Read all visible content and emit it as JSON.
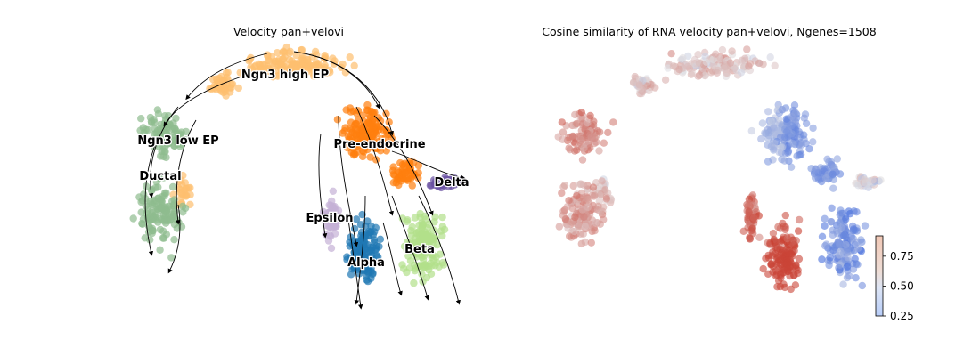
{
  "chart_data": [
    {
      "type": "scatter",
      "title": "Velocity pan+velovi",
      "xlabel": "",
      "ylabel": "",
      "grid": false,
      "clusters": [
        {
          "name": "Ngn3 high EP",
          "color": "#fdbf6f"
        },
        {
          "name": "Ngn3 low EP",
          "color": "#8fbc8f"
        },
        {
          "name": "Ductal",
          "color": "#8fbc8f"
        },
        {
          "name": "Pre-endocrine",
          "color": "#ff7f0e"
        },
        {
          "name": "Delta",
          "color": "#6a51a3"
        },
        {
          "name": "Epsilon",
          "color": "#c5b0d5"
        },
        {
          "name": "Alpha",
          "color": "#1f77b4"
        },
        {
          "name": "Beta",
          "color": "#b2df8a"
        }
      ],
      "overlay": "velocity streamlines with arrowheads"
    },
    {
      "type": "scatter",
      "title": "Cosine similarity of RNA velocity pan+velovi, Ngenes=1508",
      "xlabel": "",
      "ylabel": "",
      "grid": false,
      "colorbar": {
        "colormap": "coolwarm",
        "range": [
          0.25,
          0.92
        ],
        "ticks": [
          "0.25",
          "0.50",
          "0.75"
        ],
        "position": "bottom-right"
      }
    }
  ]
}
